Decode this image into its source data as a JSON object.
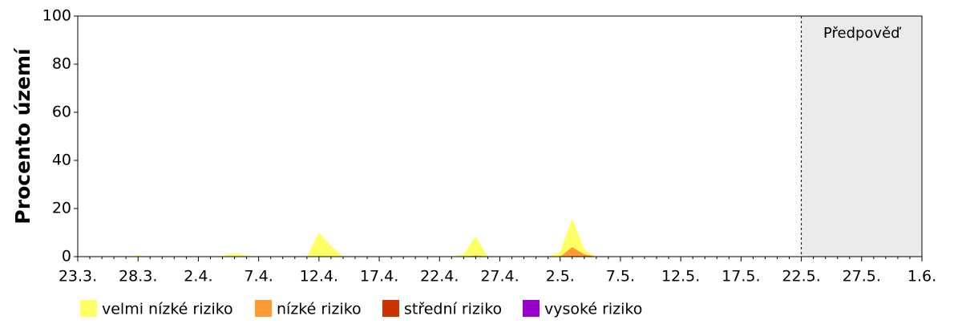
{
  "chart_data": {
    "type": "stacked-area",
    "y_label": "Procento území",
    "annotation": "Předpověď",
    "forecast_start_index": 60,
    "forecast_color": "#ebebeb",
    "categories": [
      "23.3.",
      null,
      null,
      null,
      null,
      "28.3.",
      null,
      null,
      null,
      null,
      "2.4.",
      null,
      null,
      null,
      null,
      "7.4.",
      null,
      null,
      null,
      null,
      "12.4.",
      null,
      null,
      null,
      null,
      "17.4.",
      null,
      null,
      null,
      null,
      "22.4.",
      null,
      null,
      null,
      null,
      "27.4.",
      null,
      null,
      null,
      null,
      "2.5.",
      null,
      null,
      null,
      null,
      "7.5.",
      null,
      null,
      null,
      null,
      "12.5.",
      null,
      null,
      null,
      null,
      "17.5.",
      null,
      null,
      null,
      null,
      "22.5.",
      null,
      null,
      null,
      null,
      "27.5.",
      null,
      null,
      null,
      null,
      "1.6."
    ],
    "series": [
      {
        "name": "velmi nízké riziko",
        "color": "#ffff66",
        "values": [
          0,
          0,
          0,
          0,
          0,
          0.5,
          0,
          0,
          0,
          0,
          0,
          0,
          0.3,
          1.5,
          0.3,
          0,
          0,
          0,
          0,
          0,
          10,
          4.5,
          0,
          0,
          0,
          0,
          0,
          0,
          0,
          0,
          0,
          0,
          1,
          8,
          0,
          0,
          0,
          0,
          0,
          0,
          2,
          12,
          2,
          0,
          0,
          0,
          0,
          0,
          0,
          0,
          0,
          0,
          0,
          0,
          0,
          0,
          0,
          0,
          0,
          0,
          0,
          0,
          0.3,
          0,
          0,
          0,
          0,
          0,
          0,
          0,
          0
        ]
      },
      {
        "name": "nízké riziko",
        "color": "#ff9933",
        "values": [
          0,
          0,
          0,
          0,
          0,
          0,
          0,
          0,
          0,
          0,
          0,
          0,
          0,
          0,
          0,
          0,
          0,
          0,
          0,
          0,
          0,
          0,
          0,
          0,
          0,
          0,
          0,
          0,
          0,
          0,
          0,
          0,
          0,
          0.5,
          0,
          0,
          0,
          0,
          0,
          0,
          0,
          4,
          1,
          0,
          0,
          0,
          0,
          0,
          0,
          0,
          0,
          0,
          0,
          0,
          0,
          0,
          0,
          0,
          0,
          0,
          0,
          0,
          0,
          0,
          0,
          0,
          0,
          0,
          0,
          0,
          0
        ]
      },
      {
        "name": "střední riziko",
        "color": "#cc3300",
        "values": [
          0,
          0,
          0,
          0,
          0,
          0,
          0,
          0,
          0,
          0,
          0,
          0,
          0,
          0,
          0,
          0,
          0,
          0,
          0,
          0,
          0,
          0,
          0,
          0,
          0,
          0,
          0,
          0,
          0,
          0,
          0,
          0,
          0,
          0,
          0,
          0,
          0,
          0,
          0,
          0,
          0,
          0,
          0,
          0,
          0,
          0,
          0,
          0,
          0,
          0,
          0,
          0,
          0,
          0,
          0,
          0,
          0,
          0,
          0,
          0,
          0,
          0,
          0,
          0,
          0,
          0,
          0,
          0,
          0,
          0,
          0
        ]
      },
      {
        "name": "vysoké riziko",
        "color": "#9900cc",
        "values": [
          0,
          0,
          0,
          0,
          0,
          0,
          0,
          0,
          0,
          0,
          0,
          0,
          0,
          0,
          0,
          0,
          0,
          0,
          0,
          0,
          0,
          0,
          0,
          0,
          0,
          0,
          0,
          0,
          0,
          0,
          0,
          0,
          0,
          0,
          0,
          0,
          0,
          0,
          0,
          0,
          0,
          0,
          0,
          0,
          0,
          0,
          0,
          0,
          0,
          0,
          0,
          0,
          0,
          0,
          0,
          0,
          0,
          0,
          0,
          0,
          0,
          0,
          0,
          0,
          0,
          0,
          0,
          0,
          0,
          0,
          0
        ]
      }
    ],
    "ylim": [
      0,
      100
    ],
    "yticks": [
      0,
      20,
      40,
      60,
      80,
      100
    ]
  }
}
